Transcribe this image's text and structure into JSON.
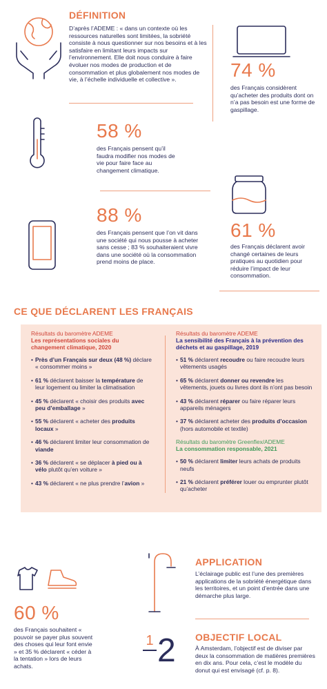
{
  "definition": {
    "title": "DÉFINITION",
    "text": "D’après l’ADEME : « dans un contexte où les ressources naturelles sont limitées, la sobriété consiste à nous questionner sur nos besoins et à les satisfaire en limitant leurs impacts sur l’environnement. Elle doit nous conduire à faire évoluer nos modes de production et de consommation et plus globalement nos modes de vie, à l’échelle individuelle et collective »."
  },
  "stats": [
    {
      "value": "74 %",
      "text": "des Français considèrent qu’acheter des produits dont on n’a pas besoin est une forme de gaspillage."
    },
    {
      "value": "58 %",
      "text": "des Français pensent qu’il faudra modifier nos modes de vie pour faire face au changement climatique."
    },
    {
      "value": "61 %",
      "text": "des Français déclarent avoir changé certaines de leurs pratiques au quotidien pour réduire l’impact de leur consommation."
    },
    {
      "value": "88 %",
      "text": "des Français pensent que l’on vit dans une société qui nous pousse à acheter sans cesse ; 83 % souhaiteraient vivre dans une société où la consommation prend moins de place."
    },
    {
      "value": "60 %",
      "text": "des Français souhaitent « pouvoir se payer plus souvent des choses qui leur font envie » et 35 % déclarent « céder à la tentation » lors de leurs achats."
    }
  ],
  "declarations": {
    "title": "CE QUE DÉCLARENT LES FRANÇAIS",
    "left": {
      "source": "Résultats du baromètre ADEME",
      "subtitle": "Les représentations sociales du changement climatique, 2020",
      "bullets": [
        [
          {
            "t": "Près d’un Français sur deux (48 %)",
            "b": true
          },
          {
            "t": " déclare « consommer moins »",
            "b": false
          }
        ],
        [
          {
            "t": "61 %",
            "b": true
          },
          {
            "t": " déclarent baisser la ",
            "b": false
          },
          {
            "t": "température",
            "b": true
          },
          {
            "t": " de leur logement ou limiter la climatisation",
            "b": false
          }
        ],
        [
          {
            "t": "45 %",
            "b": true
          },
          {
            "t": " déclarent « choisir des produits ",
            "b": false
          },
          {
            "t": "avec peu d’emballage",
            "b": true
          },
          {
            "t": " »",
            "b": false
          }
        ],
        [
          {
            "t": "55 %",
            "b": true
          },
          {
            "t": " déclarent « acheter des ",
            "b": false
          },
          {
            "t": "produits locaux",
            "b": true
          },
          {
            "t": " »",
            "b": false
          }
        ],
        [
          {
            "t": "46 %",
            "b": true
          },
          {
            "t": " déclarent limiter leur consommation de ",
            "b": false
          },
          {
            "t": "viande",
            "b": true
          }
        ],
        [
          {
            "t": "36 %",
            "b": true
          },
          {
            "t": " déclarent « se déplacer ",
            "b": false
          },
          {
            "t": "à pied ou à vélo",
            "b": true
          },
          {
            "t": " plutôt qu’en voiture »",
            "b": false
          }
        ],
        [
          {
            "t": "43 %",
            "b": true
          },
          {
            "t": " déclarent « ne plus prendre l’",
            "b": false
          },
          {
            "t": "avion",
            "b": true
          },
          {
            "t": " »",
            "b": false
          }
        ]
      ]
    },
    "right": [
      {
        "source": "Résultats du baromètre ADEME",
        "subtitle": "La sensibilité des Français à la prévention des déchets et au gaspillage, 2019",
        "bullets": [
          [
            {
              "t": "51 %",
              "b": true
            },
            {
              "t": " déclarent ",
              "b": false
            },
            {
              "t": "recoudre",
              "b": true
            },
            {
              "t": " ou faire recoudre leurs vêtements usagés",
              "b": false
            }
          ],
          [
            {
              "t": "65 %",
              "b": true
            },
            {
              "t": " déclarent ",
              "b": false
            },
            {
              "t": "donner ou revendre",
              "b": true
            },
            {
              "t": " les vêtements, jouets ou livres dont ils n’ont pas besoin",
              "b": false
            }
          ],
          [
            {
              "t": "43 %",
              "b": true
            },
            {
              "t": " déclarent ",
              "b": false
            },
            {
              "t": "réparer",
              "b": true
            },
            {
              "t": " ou faire réparer leurs appareils ménagers",
              "b": false
            }
          ],
          [
            {
              "t": "37 %",
              "b": true
            },
            {
              "t": " déclarent acheter des ",
              "b": false
            },
            {
              "t": "produits d’occasion",
              "b": true
            },
            {
              "t": " (hors automobile et textile)",
              "b": false
            }
          ]
        ]
      },
      {
        "source": "Résultats du baromètre Greenflex/ADEME",
        "subtitle": "La consommation responsable, 2021",
        "bullets": [
          [
            {
              "t": "50 %",
              "b": true
            },
            {
              "t": " déclarent ",
              "b": false
            },
            {
              "t": "limiter",
              "b": true
            },
            {
              "t": " leurs achats de produits neufs",
              "b": false
            }
          ],
          [
            {
              "t": "21 %",
              "b": true
            },
            {
              "t": " déclarent ",
              "b": false
            },
            {
              "t": "préférer",
              "b": true
            },
            {
              "t": " louer ou emprunter plutôt qu’acheter",
              "b": false
            }
          ]
        ]
      }
    ]
  },
  "application": {
    "title": "APPLICATION",
    "text": "L’éclairage public est l’une des premières applications de la sobriété énergétique dans les territoires, et un point d’entrée dans une démarche plus large."
  },
  "objectif": {
    "title": "OBJECTIF LOCAL",
    "text": "À Amsterdam, l’objectif est de diviser par deux la consommation de matières premières en dix ans. Pour cela, c’est le modèle du donut qui est envisagé (cf. p. 8).",
    "fraction": [
      "1",
      "2"
    ]
  }
}
